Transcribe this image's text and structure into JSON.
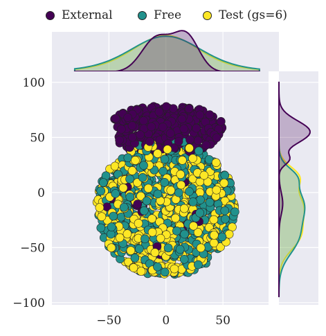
{
  "chart_data": {
    "type": "scatter",
    "title": "",
    "xlabel": "",
    "ylabel": "",
    "xlim": [
      -100,
      90
    ],
    "ylim": [
      -102,
      110
    ],
    "xticks": [
      "−50",
      "0",
      "50"
    ],
    "xtick_values": [
      -50,
      0,
      50
    ],
    "yticks": [
      "100",
      "50",
      "0",
      "−50",
      "−100"
    ],
    "ytick_values": [
      100,
      50,
      0,
      -50,
      -100
    ],
    "grid": true,
    "legend_placement": "top",
    "marginal_plots": "kde (top for x, right for y)",
    "series": [
      {
        "name": "External",
        "color": "#440154",
        "cluster_center": [
          2,
          55
        ],
        "cluster_extent_x": [
          -45,
          50
        ],
        "cluster_extent_y": [
          37,
          79
        ],
        "kde_x_peaks": [
          -8,
          18
        ],
        "kde_y_peak": 55
      },
      {
        "name": "Free",
        "color": "#21918c",
        "cluster_center": [
          0,
          -14
        ],
        "cluster_radius": 62,
        "kde_x_peak": 0,
        "kde_y_peaks": [
          15,
          -10,
          -42
        ]
      },
      {
        "name": "Test (gs=6)",
        "color": "#fde725",
        "cluster_center": [
          0,
          -14
        ],
        "cluster_radius": 62,
        "kde_x_peak": 0,
        "kde_y_peaks": [
          15,
          -12,
          -40
        ]
      }
    ]
  }
}
